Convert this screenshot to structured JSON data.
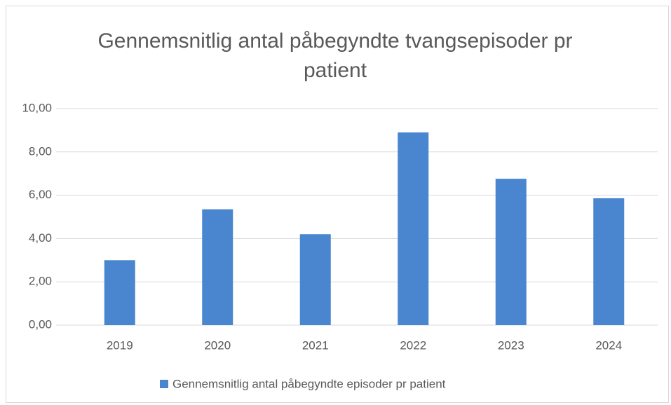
{
  "chart_data": {
    "type": "bar",
    "title": "Gennemsnitlig antal påbegyndte tvangsepisoder pr patient",
    "categories": [
      "2019",
      "2020",
      "2021",
      "2022",
      "2023",
      "2024"
    ],
    "series": [
      {
        "name": "Gennemsnitlig antal påbegyndte episoder pr patient",
        "color": "#4a86d0",
        "values": [
          3.0,
          5.35,
          4.2,
          8.9,
          6.76,
          5.86
        ]
      }
    ],
    "ylim": [
      0,
      10
    ],
    "yticks": [
      {
        "value": 0,
        "label": "0,00"
      },
      {
        "value": 2,
        "label": "2,00"
      },
      {
        "value": 4,
        "label": "4,00"
      },
      {
        "value": 6,
        "label": "6,00"
      },
      {
        "value": 8,
        "label": "8,00"
      },
      {
        "value": 10,
        "label": "10,00"
      }
    ],
    "grid": true,
    "legend": "bottom"
  }
}
